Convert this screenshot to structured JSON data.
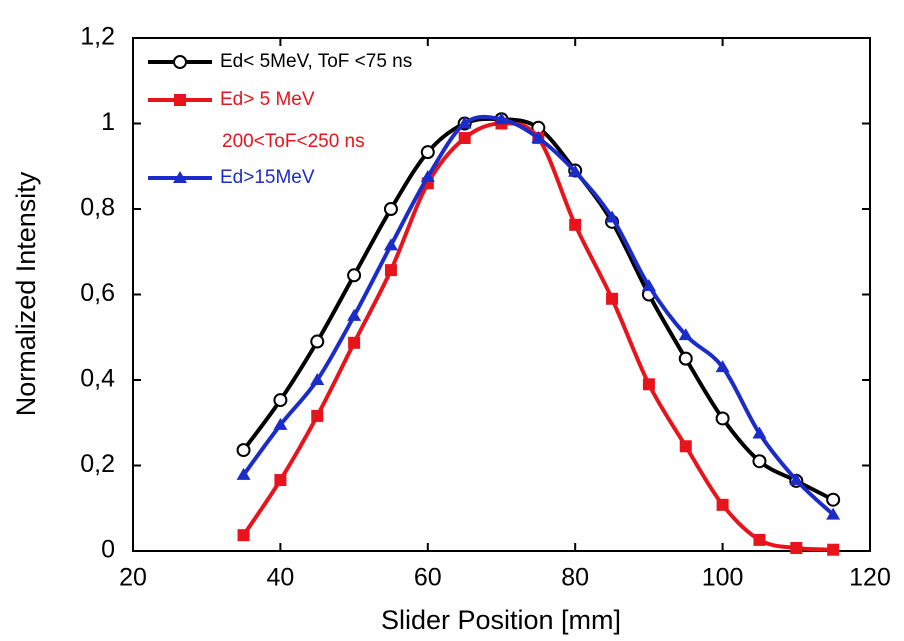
{
  "chart_data": {
    "type": "scatter",
    "x_label": "Slider Position [mm]",
    "y_label": "Normalized Intensity",
    "xlim": [
      20,
      120
    ],
    "xticks": [
      20,
      40,
      60,
      80,
      100,
      120
    ],
    "ylim": [
      0,
      1.2
    ],
    "yticks": [
      0,
      {
        "value": 0.2,
        "label": "0,2"
      },
      {
        "value": 0.4,
        "label": "0,4"
      },
      {
        "value": 0.6,
        "label": "0,6"
      },
      {
        "value": 0.8,
        "label": "0,8"
      },
      1,
      {
        "value": 1.2,
        "label": "1,2"
      }
    ],
    "annotation": "200<ToF<250 ns",
    "x": [
      35,
      40,
      45,
      50,
      55,
      60,
      65,
      70,
      75,
      80,
      85,
      90,
      95,
      100,
      105,
      110,
      115
    ],
    "series": [
      {
        "name": "Ed< 5MeV, ToF <75 ns",
        "color": "#000000",
        "marker": "circle",
        "values": [
          0.236,
          0.353,
          0.49,
          0.645,
          0.8,
          0.933,
          1.0,
          1.01,
          0.99,
          0.89,
          0.77,
          0.6,
          0.45,
          0.31,
          0.21,
          0.164,
          0.12
        ]
      },
      {
        "name": "Ed> 5 MeV",
        "color": "#e8141c",
        "marker": "square",
        "values": [
          0.037,
          0.166,
          0.316,
          0.487,
          0.657,
          0.86,
          0.966,
          1.0,
          0.966,
          0.763,
          0.59,
          0.39,
          0.245,
          0.108,
          0.026,
          0.007,
          0.003
        ]
      },
      {
        "name": "Ed>15MeV",
        "color": "#1c2cc8",
        "marker": "triangle",
        "values": [
          0.178,
          0.295,
          0.4,
          0.55,
          0.715,
          0.875,
          1.0,
          1.01,
          0.966,
          0.887,
          0.78,
          0.62,
          0.505,
          0.43,
          0.275,
          0.166,
          0.085
        ]
      }
    ]
  }
}
